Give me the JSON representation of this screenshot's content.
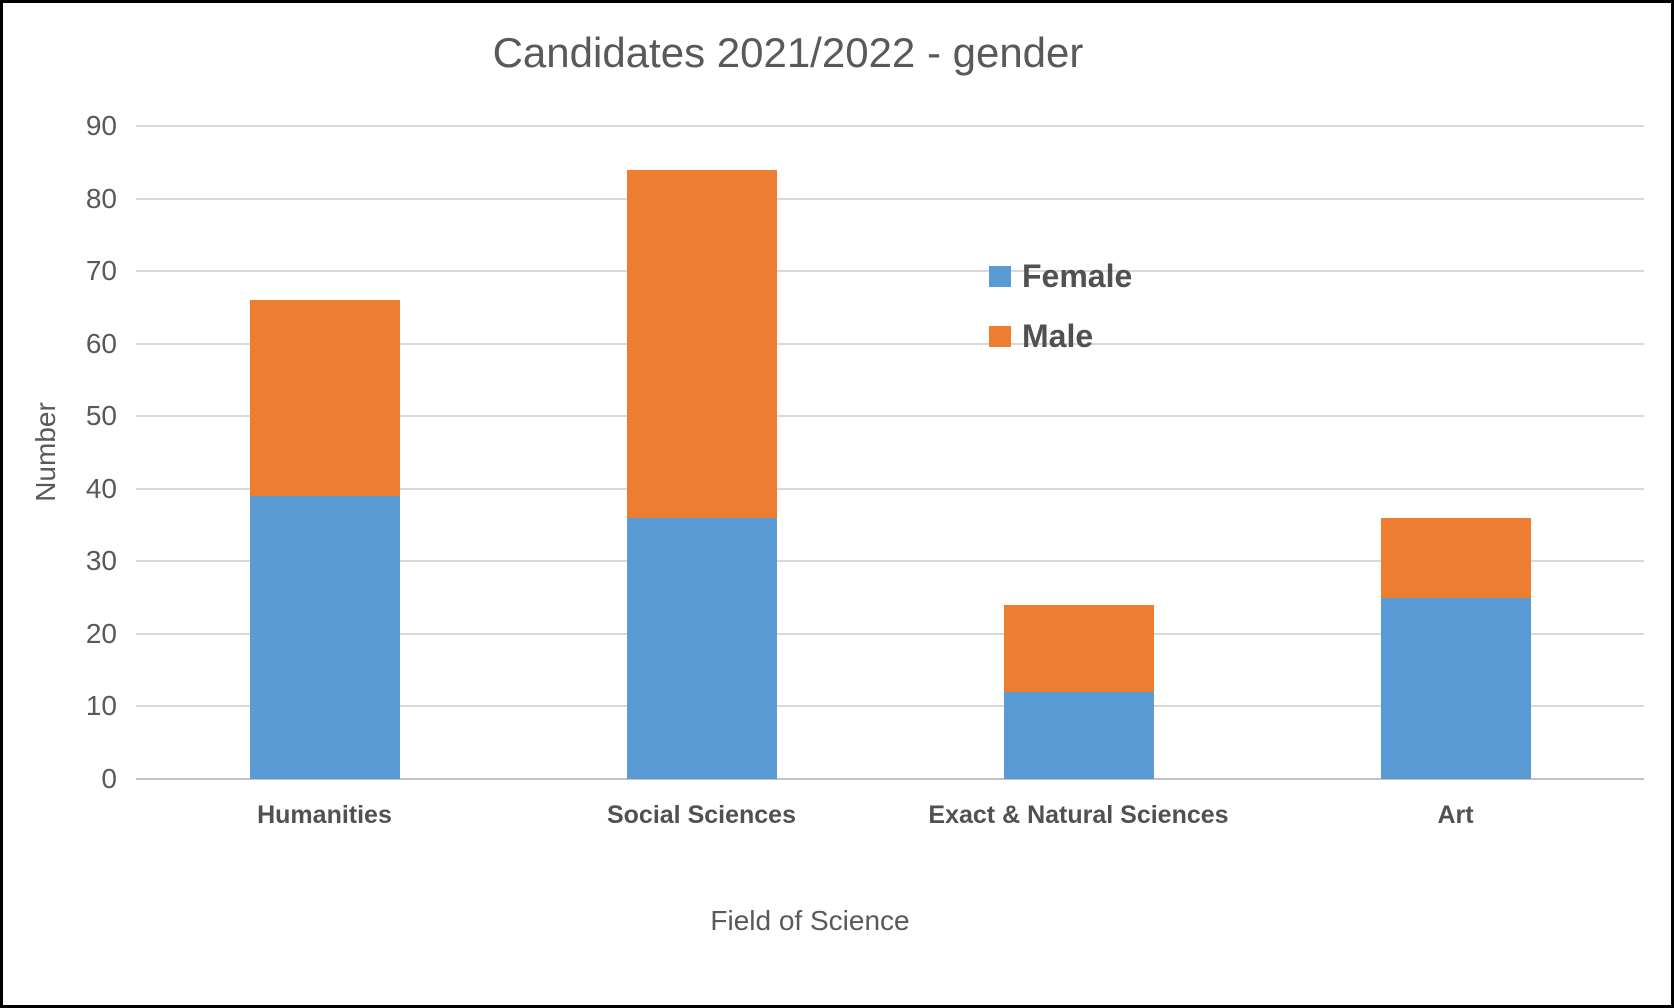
{
  "chart_data": {
    "type": "bar",
    "stacked": true,
    "title": "Candidates 2021/2022 - gender",
    "xlabel": "Field of Science",
    "ylabel": "Number",
    "categories": [
      "Humanities",
      "Social Sciences",
      "Exact & Natural Sciences",
      "Art"
    ],
    "series": [
      {
        "name": "Female",
        "color": "#5B9BD5",
        "values": [
          39,
          36,
          12,
          25
        ]
      },
      {
        "name": "Male",
        "color": "#ED7D31",
        "values": [
          27,
          48,
          12,
          11
        ]
      }
    ],
    "totals": [
      66,
      84,
      24,
      36
    ],
    "ylim": [
      0,
      90
    ],
    "ytick_step": 10,
    "yticks": [
      0,
      10,
      20,
      30,
      40,
      50,
      60,
      70,
      80,
      90
    ],
    "grid": true,
    "gridline_color": "#D9D9D9",
    "legend_position": "inside-upper-right",
    "legend": [
      "Female",
      "Male"
    ]
  }
}
